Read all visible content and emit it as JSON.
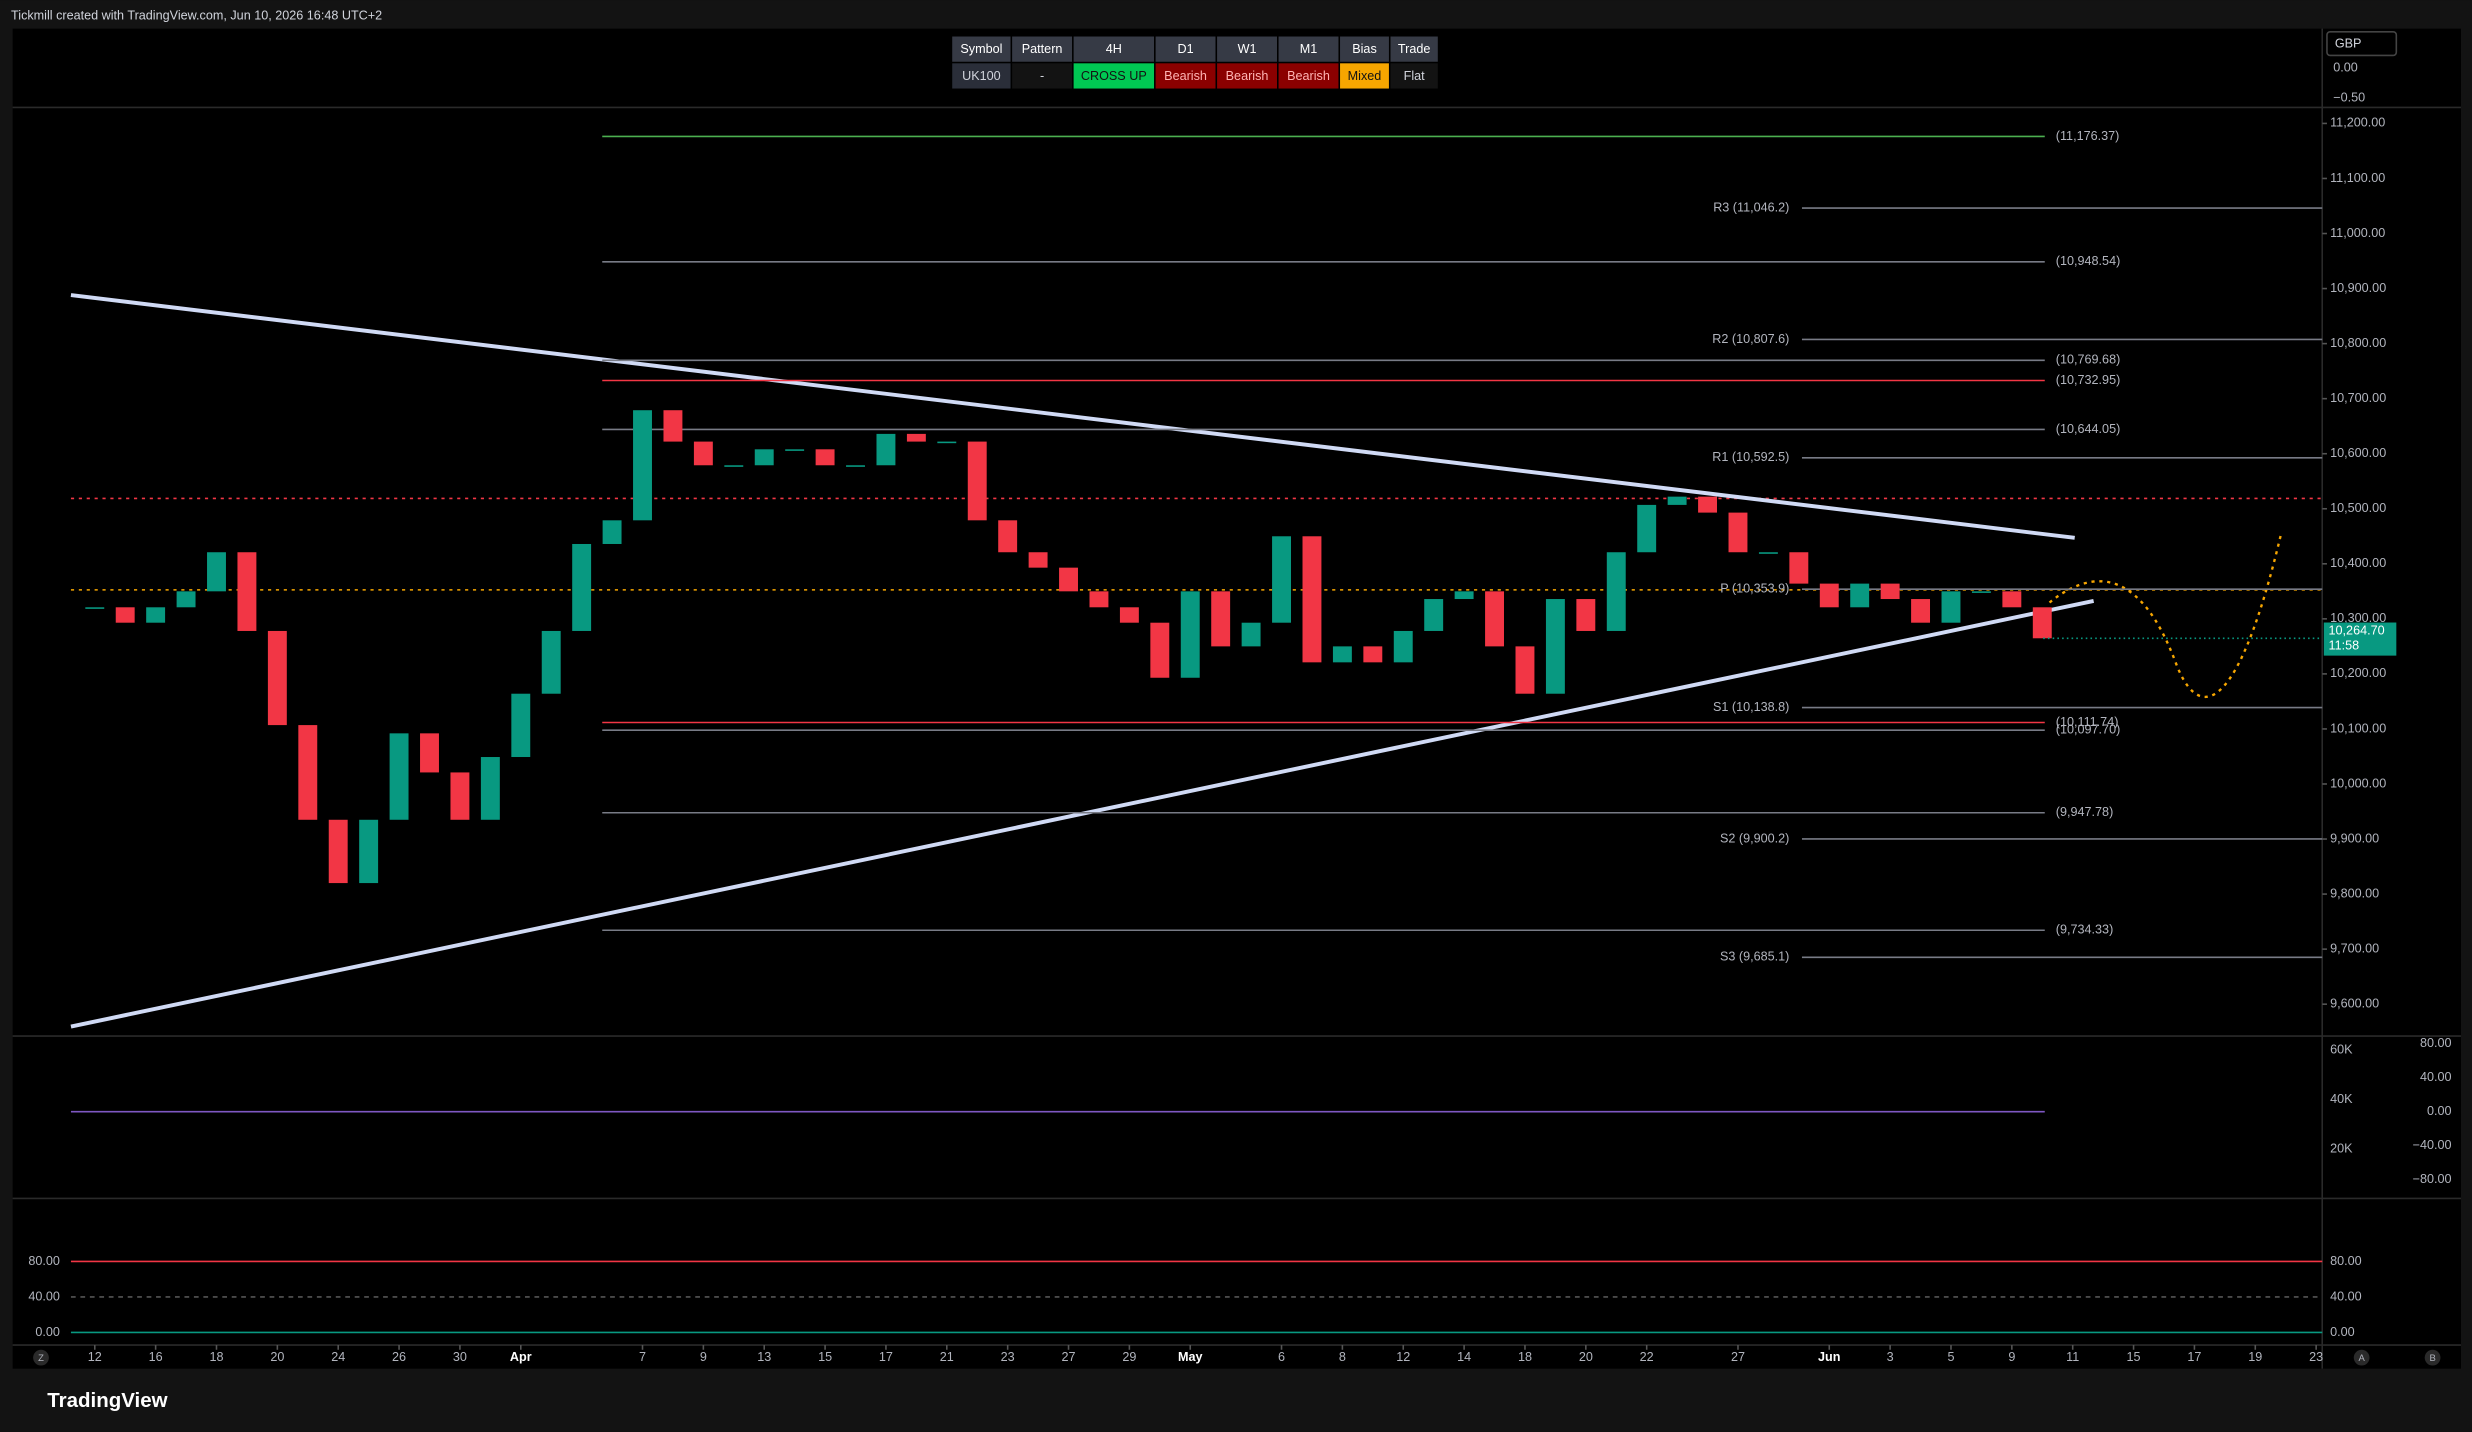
{
  "watermark": "Tickmill created with TradingView.com, Jun 10, 2026 16:48 UTC+2",
  "brand": "TradingView",
  "signal_table": {
    "headers": [
      "Symbol",
      "Pattern",
      "4H",
      "D1",
      "W1",
      "M1",
      "Bias",
      "Trade"
    ],
    "row": [
      "UK100",
      "-",
      "CROSS UP",
      "Bearish",
      "Bearish",
      "Bearish",
      "Mixed",
      "Flat"
    ]
  },
  "chart_data": {
    "type": "candlestick",
    "x": [
      0,
      1,
      2,
      3,
      4,
      5,
      6,
      7,
      8,
      9,
      10,
      11,
      12,
      13,
      14,
      15,
      16,
      17,
      18,
      19,
      20,
      21,
      22,
      23,
      24,
      25,
      26,
      27,
      28,
      29,
      30,
      31,
      32,
      33,
      34,
      35,
      36,
      37,
      38,
      39,
      40,
      41,
      42,
      43,
      44,
      45,
      46,
      47,
      48,
      49,
      50,
      51,
      52,
      53,
      54,
      55,
      56,
      57,
      58,
      59,
      60,
      61,
      62,
      63,
      64
    ],
    "values": [
      10321,
      10293,
      10321,
      10350,
      10421,
      10278,
      10107,
      9935,
      9820,
      9935,
      10092,
      10021,
      9935,
      10049,
      10164,
      10278,
      10436,
      10479,
      10679,
      10622,
      10579,
      10579,
      10608,
      10608,
      10579,
      10579,
      10636,
      10622,
      10622,
      10479,
      10421,
      10393,
      10350,
      10321,
      10293,
      10193,
      10350,
      10250,
      10293,
      10450,
      10221,
      10250,
      10221,
      10278,
      10336,
      10350,
      10250,
      10164,
      10336,
      10278,
      10421,
      10507,
      10522,
      10493,
      10421,
      10421,
      10364,
      10321,
      10364,
      10336,
      10293,
      10350,
      10350,
      10321,
      10264.7
    ],
    "xlim": [
      -2.7,
      73.2
    ],
    "xticks": [
      {
        "value": 0,
        "label": "12"
      },
      {
        "value": 2,
        "label": "16"
      },
      {
        "value": 4,
        "label": "18"
      },
      {
        "value": 6,
        "label": "20"
      },
      {
        "value": 8,
        "label": "24"
      },
      {
        "value": 10,
        "label": "26"
      },
      {
        "value": 12,
        "label": "30"
      },
      {
        "value": 14,
        "label": "Apr"
      },
      {
        "value": 18,
        "label": "7"
      },
      {
        "value": 20,
        "label": "9"
      },
      {
        "value": 22,
        "label": "13"
      },
      {
        "value": 24,
        "label": "15"
      },
      {
        "value": 26,
        "label": "17"
      },
      {
        "value": 28,
        "label": "21"
      },
      {
        "value": 30,
        "label": "23"
      },
      {
        "value": 32,
        "label": "27"
      },
      {
        "value": 34,
        "label": "29"
      },
      {
        "value": 36,
        "label": "May"
      },
      {
        "value": 39,
        "label": "6"
      },
      {
        "value": 41,
        "label": "8"
      },
      {
        "value": 43,
        "label": "12"
      },
      {
        "value": 45,
        "label": "14"
      },
      {
        "value": 47,
        "label": "18"
      },
      {
        "value": 49,
        "label": "20"
      },
      {
        "value": 51,
        "label": "22"
      },
      {
        "value": 54,
        "label": "27"
      },
      {
        "value": 57,
        "label": "Jun"
      },
      {
        "value": 59,
        "label": "3"
      },
      {
        "value": 61,
        "label": "5"
      },
      {
        "value": 63,
        "label": "9"
      },
      {
        "value": 65,
        "label": "11"
      },
      {
        "value": 67,
        "label": "15"
      },
      {
        "value": 69,
        "label": "17"
      },
      {
        "value": 71,
        "label": "19"
      },
      {
        "value": 73,
        "label": "23"
      }
    ],
    "ylim": [
      9545,
      11229
    ],
    "yticks": [
      {
        "value": 11200,
        "label": "11,200.00"
      },
      {
        "value": 11100,
        "label": "11,100.00"
      },
      {
        "value": 11000,
        "label": "11,000.00"
      },
      {
        "value": 10900,
        "label": "10,900.00"
      },
      {
        "value": 10800,
        "label": "10,800.00"
      },
      {
        "value": 10700,
        "label": "10,700.00"
      },
      {
        "value": 10600,
        "label": "10,600.00"
      },
      {
        "value": 10500,
        "label": "10,500.00"
      },
      {
        "value": 10400,
        "label": "10,400.00"
      },
      {
        "value": 10300,
        "label": "10,300.00"
      },
      {
        "value": 10200,
        "label": "10,200.00"
      },
      {
        "value": 10100,
        "label": "10,100.00"
      },
      {
        "value": 10000,
        "label": "10,000.00"
      },
      {
        "value": 9900,
        "label": "9,900.00"
      },
      {
        "value": 9800,
        "label": "9,800.00"
      },
      {
        "value": 9700,
        "label": "9,700.00"
      },
      {
        "value": 9600,
        "label": "9,600.00"
      }
    ],
    "up_color": "#089981",
    "down_color": "#f23645",
    "currency": "GBP",
    "top_scale_ticks": [
      {
        "value": 0,
        "label": "0.00"
      },
      {
        "value": -0.5,
        "label": "−0.50"
      }
    ],
    "last_price": {
      "value": 10264.7,
      "label": "10,264.70"
    },
    "countdown": "11:58",
    "levels": [
      {
        "label": "(11,176.37)",
        "value": 11176.37,
        "color": "#4caf50"
      },
      {
        "label": "R3 (11,046.2)",
        "value": 11046.2,
        "color": "#787b86"
      },
      {
        "label": "(10,948.54)",
        "value": 10948.54,
        "color": "#787b86"
      },
      {
        "label": "R2 (10,807.6)",
        "value": 10807.6,
        "color": "#787b86"
      },
      {
        "label": "(10,769.68)",
        "value": 10769.68,
        "color": "#787b86"
      },
      {
        "label": "(10,732.95)",
        "value": 10732.95,
        "color": "#f23645"
      },
      {
        "label": "(10,644.05)",
        "value": 10644.05,
        "color": "#787b86"
      },
      {
        "label": "R1 (10,592.5)",
        "value": 10592.5,
        "color": "#787b86"
      },
      {
        "label": "P (10,353.9)",
        "value": 10353.9,
        "color": "#787b86"
      },
      {
        "label": "S1 (10,138.8)",
        "value": 10138.8,
        "color": "#787b86"
      },
      {
        "label": "(10,111.74)",
        "value": 10111.74,
        "color": "#f23645"
      },
      {
        "label": "(10,097.70)",
        "value": 10097.7,
        "color": "#787b86"
      },
      {
        "label": "(9,947.78)",
        "value": 9947.78,
        "color": "#787b86"
      },
      {
        "label": "S2 (9,900.2)",
        "value": 9900.2,
        "color": "#787b86"
      },
      {
        "label": "(9,734.33)",
        "value": 9734.33,
        "color": "#787b86"
      },
      {
        "label": "S3 (9,685.1)",
        "value": 9685.1,
        "color": "#787b86"
      }
    ],
    "volume_pane": {
      "ylim": [
        0,
        65800
      ],
      "yticks": [
        {
          "value": 60000,
          "label": "60K"
        },
        {
          "value": 40000,
          "label": "40K"
        },
        {
          "value": 20000,
          "label": "20K"
        }
      ]
    },
    "oscillator_pane": {
      "ylim": [
        -102.3,
        89.3
      ],
      "yticks": [
        {
          "value": 80,
          "label": "80.00"
        },
        {
          "value": 40,
          "label": "40.00"
        },
        {
          "value": 0,
          "label": "0.00"
        },
        {
          "value": -40,
          "label": "−40.00"
        },
        {
          "value": -80,
          "label": "−80.00"
        }
      ]
    },
    "stochastic_pane": {
      "ylim": [
        -14.2,
        151
      ],
      "yticks": [
        {
          "value": 80,
          "label": "80.00"
        },
        {
          "value": 40,
          "label": "40.00"
        },
        {
          "value": 0,
          "label": "0.00"
        }
      ]
    },
    "axis_buttons": [
      "Z",
      "A",
      "B"
    ]
  }
}
